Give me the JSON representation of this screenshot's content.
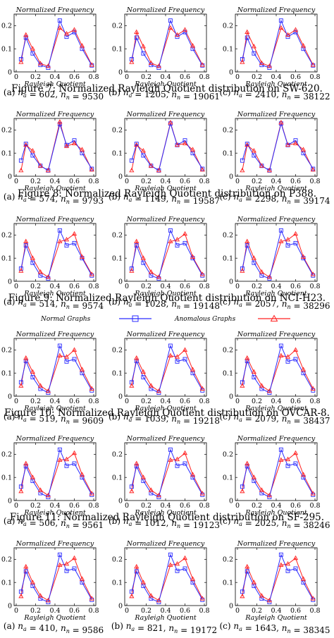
{
  "axis": {
    "ylabel": "Normalized Frequency",
    "xlabel": "Rayleigh Quotient",
    "y_ticks": [
      "0",
      "0.1",
      "0.2"
    ],
    "x_ticks": [
      "0",
      "0.2",
      "0.4",
      "0.6",
      "0.8"
    ]
  },
  "legend": {
    "normal": "Normal Graphs",
    "anomalous": "Anomalous Graphs"
  },
  "colors": {
    "normal": "#2b2bff",
    "anomalous": "#ff2020"
  },
  "chart_data": {
    "type": "line",
    "x": [
      0.05,
      0.1,
      0.17,
      0.25,
      0.33,
      0.45,
      0.52,
      0.6,
      0.68,
      0.78
    ],
    "xlim": [
      0,
      0.8
    ],
    "ylim": [
      0,
      0.25
    ],
    "xlabel": "Rayleigh Quotient",
    "ylabel": "Normalized Frequency",
    "series_names": [
      "Normal Graphs",
      "Anomalous Graphs"
    ],
    "figures": [
      {
        "caption": "Figure 7: Normalized Rayleigh Quotient distribution on SW-620.",
        "panels": [
          {
            "label": "(a) n_a = 602, n_n = 9530",
            "normal": [
              0.055,
              0.148,
              0.08,
              0.03,
              0.018,
              0.222,
              0.152,
              0.172,
              0.1,
              0.028
            ],
            "anomalous": [
              0.042,
              0.16,
              0.1,
              0.036,
              0.025,
              0.19,
              0.165,
              0.182,
              0.113,
              0.03
            ]
          },
          {
            "label": "(b) n_a = 1205, n_n = 19061",
            "normal": [
              0.055,
              0.148,
              0.08,
              0.03,
              0.018,
              0.222,
              0.152,
              0.172,
              0.1,
              0.028
            ],
            "anomalous": [
              0.042,
              0.172,
              0.11,
              0.038,
              0.025,
              0.19,
              0.16,
              0.182,
              0.113,
              0.03
            ]
          },
          {
            "label": "(c) n_a = 2410, n_n = 38122",
            "normal": [
              0.055,
              0.148,
              0.08,
              0.03,
              0.018,
              0.222,
              0.152,
              0.172,
              0.1,
              0.028
            ],
            "anomalous": [
              0.042,
              0.172,
              0.11,
              0.038,
              0.025,
              0.19,
              0.16,
              0.182,
              0.113,
              0.03
            ]
          }
        ]
      },
      {
        "caption": "Figure 8: Normalized Rayleigh Quotient distribution on P388.",
        "panels": [
          {
            "label": "(a) n_a = 574, n_n = 9793",
            "normal": [
              0.068,
              0.14,
              0.09,
              0.045,
              0.025,
              0.225,
              0.135,
              0.155,
              0.1,
              0.032
            ],
            "anomalous": [
              0.025,
              0.135,
              0.11,
              0.045,
              0.025,
              0.235,
              0.13,
              0.142,
              0.115,
              0.028
            ]
          },
          {
            "label": "(b) n_a = 1149, n_n = 19587",
            "normal": [
              0.068,
              0.14,
              0.09,
              0.045,
              0.025,
              0.228,
              0.135,
              0.155,
              0.1,
              0.032
            ],
            "anomalous": [
              0.025,
              0.135,
              0.11,
              0.045,
              0.025,
              0.232,
              0.135,
              0.142,
              0.115,
              0.028
            ]
          },
          {
            "label": "(c) n_a = 2298, n_n = 39174",
            "normal": [
              0.068,
              0.14,
              0.09,
              0.045,
              0.025,
              0.228,
              0.135,
              0.155,
              0.1,
              0.032
            ],
            "anomalous": [
              0.025,
              0.135,
              0.11,
              0.045,
              0.025,
              0.232,
              0.135,
              0.142,
              0.115,
              0.028
            ]
          }
        ]
      },
      {
        "caption": "Figure 9: Normalized Rayleigh Quotient distribution on NCI-H23.",
        "panels": [
          {
            "label": "(a) n_a = 514, n_n = 9574",
            "normal": [
              0.055,
              0.155,
              0.08,
              0.025,
              0.012,
              0.22,
              0.155,
              0.165,
              0.1,
              0.025
            ],
            "anomalous": [
              0.045,
              0.172,
              0.1,
              0.04,
              0.018,
              0.172,
              0.18,
              0.205,
              0.105,
              0.03
            ]
          },
          {
            "label": "(b) n_a = 1028, n_n = 19148",
            "normal": [
              0.055,
              0.155,
              0.08,
              0.025,
              0.012,
              0.22,
              0.155,
              0.165,
              0.1,
              0.025
            ],
            "anomalous": [
              0.045,
              0.172,
              0.1,
              0.04,
              0.018,
              0.172,
              0.18,
              0.205,
              0.105,
              0.03
            ]
          },
          {
            "label": "(c) n_a = 2057, n_n = 38296",
            "normal": [
              0.055,
              0.155,
              0.08,
              0.025,
              0.012,
              0.22,
              0.155,
              0.165,
              0.1,
              0.025
            ],
            "anomalous": [
              0.045,
              0.172,
              0.1,
              0.04,
              0.018,
              0.172,
              0.18,
              0.205,
              0.105,
              0.03
            ]
          }
        ]
      },
      {
        "caption": "Figure 10: Normalized Rayleigh Quotient distribution on OVCAR-8.",
        "panels": [
          {
            "label": "(a) n_a = 519, n_n = 9609",
            "normal": [
              0.06,
              0.152,
              0.082,
              0.032,
              0.015,
              0.218,
              0.15,
              0.16,
              0.1,
              0.025
            ],
            "anomalous": [
              0.045,
              0.165,
              0.105,
              0.045,
              0.022,
              0.175,
              0.17,
              0.2,
              0.115,
              0.032
            ]
          },
          {
            "label": "(b) n_a = 1039, n_n = 19218",
            "normal": [
              0.06,
              0.152,
              0.082,
              0.032,
              0.015,
              0.218,
              0.15,
              0.16,
              0.1,
              0.025
            ],
            "anomalous": [
              0.045,
              0.165,
              0.105,
              0.045,
              0.022,
              0.175,
              0.17,
              0.2,
              0.115,
              0.032
            ]
          },
          {
            "label": "(c) n_a = 2079, n_n = 38437",
            "normal": [
              0.06,
              0.152,
              0.082,
              0.032,
              0.015,
              0.218,
              0.15,
              0.16,
              0.1,
              0.025
            ],
            "anomalous": [
              0.045,
              0.165,
              0.105,
              0.045,
              0.022,
              0.175,
              0.17,
              0.2,
              0.115,
              0.032
            ]
          }
        ]
      },
      {
        "caption": "Figure 11: Normalized Rayleigh Quotient distribution on SF-295.",
        "panels": [
          {
            "label": "(a) n_a = 506, n_n = 9561",
            "normal": [
              0.06,
              0.148,
              0.085,
              0.032,
              0.015,
              0.22,
              0.15,
              0.16,
              0.1,
              0.025
            ],
            "anomalous": [
              0.04,
              0.16,
              0.1,
              0.045,
              0.022,
              0.175,
              0.178,
              0.205,
              0.112,
              0.03
            ]
          },
          {
            "label": "(b) n_a = 1012, n_n = 19123",
            "normal": [
              0.06,
              0.148,
              0.085,
              0.032,
              0.015,
              0.22,
              0.15,
              0.16,
              0.1,
              0.025
            ],
            "anomalous": [
              0.04,
              0.16,
              0.1,
              0.045,
              0.022,
              0.175,
              0.178,
              0.205,
              0.112,
              0.03
            ]
          },
          {
            "label": "(c) n_a = 2025, n_n = 38246",
            "normal": [
              0.06,
              0.148,
              0.085,
              0.032,
              0.015,
              0.22,
              0.15,
              0.16,
              0.1,
              0.025
            ],
            "anomalous": [
              0.04,
              0.16,
              0.1,
              0.045,
              0.022,
              0.175,
              0.178,
              0.205,
              0.112,
              0.03
            ]
          }
        ]
      },
      {
        "caption": "",
        "panels": [
          {
            "label": "(a) n_a = 410, n_n = 9586",
            "normal": [
              0.06,
              0.148,
              0.085,
              0.03,
              0.015,
              0.22,
              0.15,
              0.16,
              0.1,
              0.025
            ],
            "anomalous": [
              0.04,
              0.168,
              0.1,
              0.042,
              0.022,
              0.175,
              0.18,
              0.205,
              0.115,
              0.03
            ]
          },
          {
            "label": "(b) n_a = 821, n_n = 19172",
            "normal": [
              0.06,
              0.148,
              0.085,
              0.03,
              0.015,
              0.22,
              0.15,
              0.16,
              0.1,
              0.025
            ],
            "anomalous": [
              0.04,
              0.168,
              0.1,
              0.042,
              0.022,
              0.175,
              0.18,
              0.205,
              0.115,
              0.03
            ]
          },
          {
            "label": "(c) n_a = 1643, n_n = 38345",
            "normal": [
              0.06,
              0.148,
              0.085,
              0.03,
              0.015,
              0.22,
              0.15,
              0.16,
              0.1,
              0.025
            ],
            "anomalous": [
              0.04,
              0.168,
              0.1,
              0.042,
              0.022,
              0.175,
              0.18,
              0.205,
              0.115,
              0.03
            ]
          }
        ]
      }
    ]
  }
}
